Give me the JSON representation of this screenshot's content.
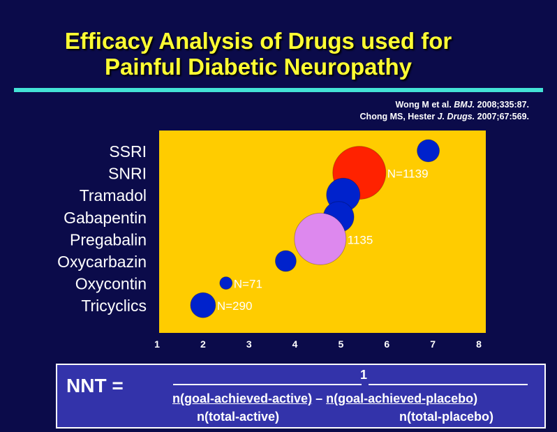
{
  "title_line1": "Efficacy Analysis of Drugs used for",
  "title_line2": "Painful Diabetic Neuropathy",
  "refs": {
    "line1_prefix": "Wong M et al. ",
    "line1_journal": "BMJ.",
    "line1_suffix": " 2008;335:87.",
    "line2_prefix": "Chong MS, Hester ",
    "line2_journal": "J. Drugs.",
    "line2_suffix": " 2007;67:569."
  },
  "colors": {
    "background": "#0b0b4a",
    "title": "#ffff33",
    "rule": "#44e3d6",
    "plot_area": "#ffcc00",
    "bubble_default": "#0022cc",
    "bubble_snri": "#ff2200",
    "bubble_pregabalin": "#dd88ee",
    "formula_box": "#3333aa"
  },
  "chart_data": {
    "type": "scatter",
    "title": "",
    "xlabel": "",
    "ylabel": "",
    "xlim": [
      1,
      8
    ],
    "x_ticks": [
      "1",
      "2",
      "3",
      "4",
      "5",
      "6",
      "7",
      "8"
    ],
    "categories": [
      "SSRI",
      "SNRI",
      "Tramadol",
      "Gabapentin",
      "Pregabalin",
      "Oxycarbazin",
      "Oxycontin",
      "Tricyclics"
    ],
    "grid": false,
    "legend": "none",
    "points": [
      {
        "category": "SSRI",
        "x": 6.9,
        "size": 16,
        "color": "#0022cc",
        "label": ""
      },
      {
        "category": "SNRI",
        "x": 5.4,
        "size": 38,
        "color": "#ff2200",
        "label": "N=1139"
      },
      {
        "category": "Tramadol",
        "x": 5.05,
        "size": 24,
        "color": "#0022cc",
        "label": ""
      },
      {
        "category": "Gabapentin",
        "x": 4.95,
        "size": 22,
        "color": "#0022cc",
        "label": ""
      },
      {
        "category": "Pregabalin",
        "x": 4.55,
        "size": 37,
        "color": "#dd88ee",
        "label": "1135"
      },
      {
        "category": "Oxycarbazin",
        "x": 3.8,
        "size": 15,
        "color": "#0022cc",
        "label": ""
      },
      {
        "category": "Oxycontin",
        "x": 2.5,
        "size": 9,
        "color": "#0022cc",
        "label": "N=71"
      },
      {
        "category": "Tricyclics",
        "x": 2.0,
        "size": 18,
        "color": "#0022cc",
        "label": "N=290"
      }
    ]
  },
  "formula": {
    "lhs": "NNT =",
    "numerator": "1",
    "active_top": "n(goal-achieved-active)",
    "minus": " – ",
    "placebo_top": "n(goal-achieved-placebo)",
    "active_bottom": "n(total-active)",
    "placebo_bottom": "n(total-placebo)"
  }
}
